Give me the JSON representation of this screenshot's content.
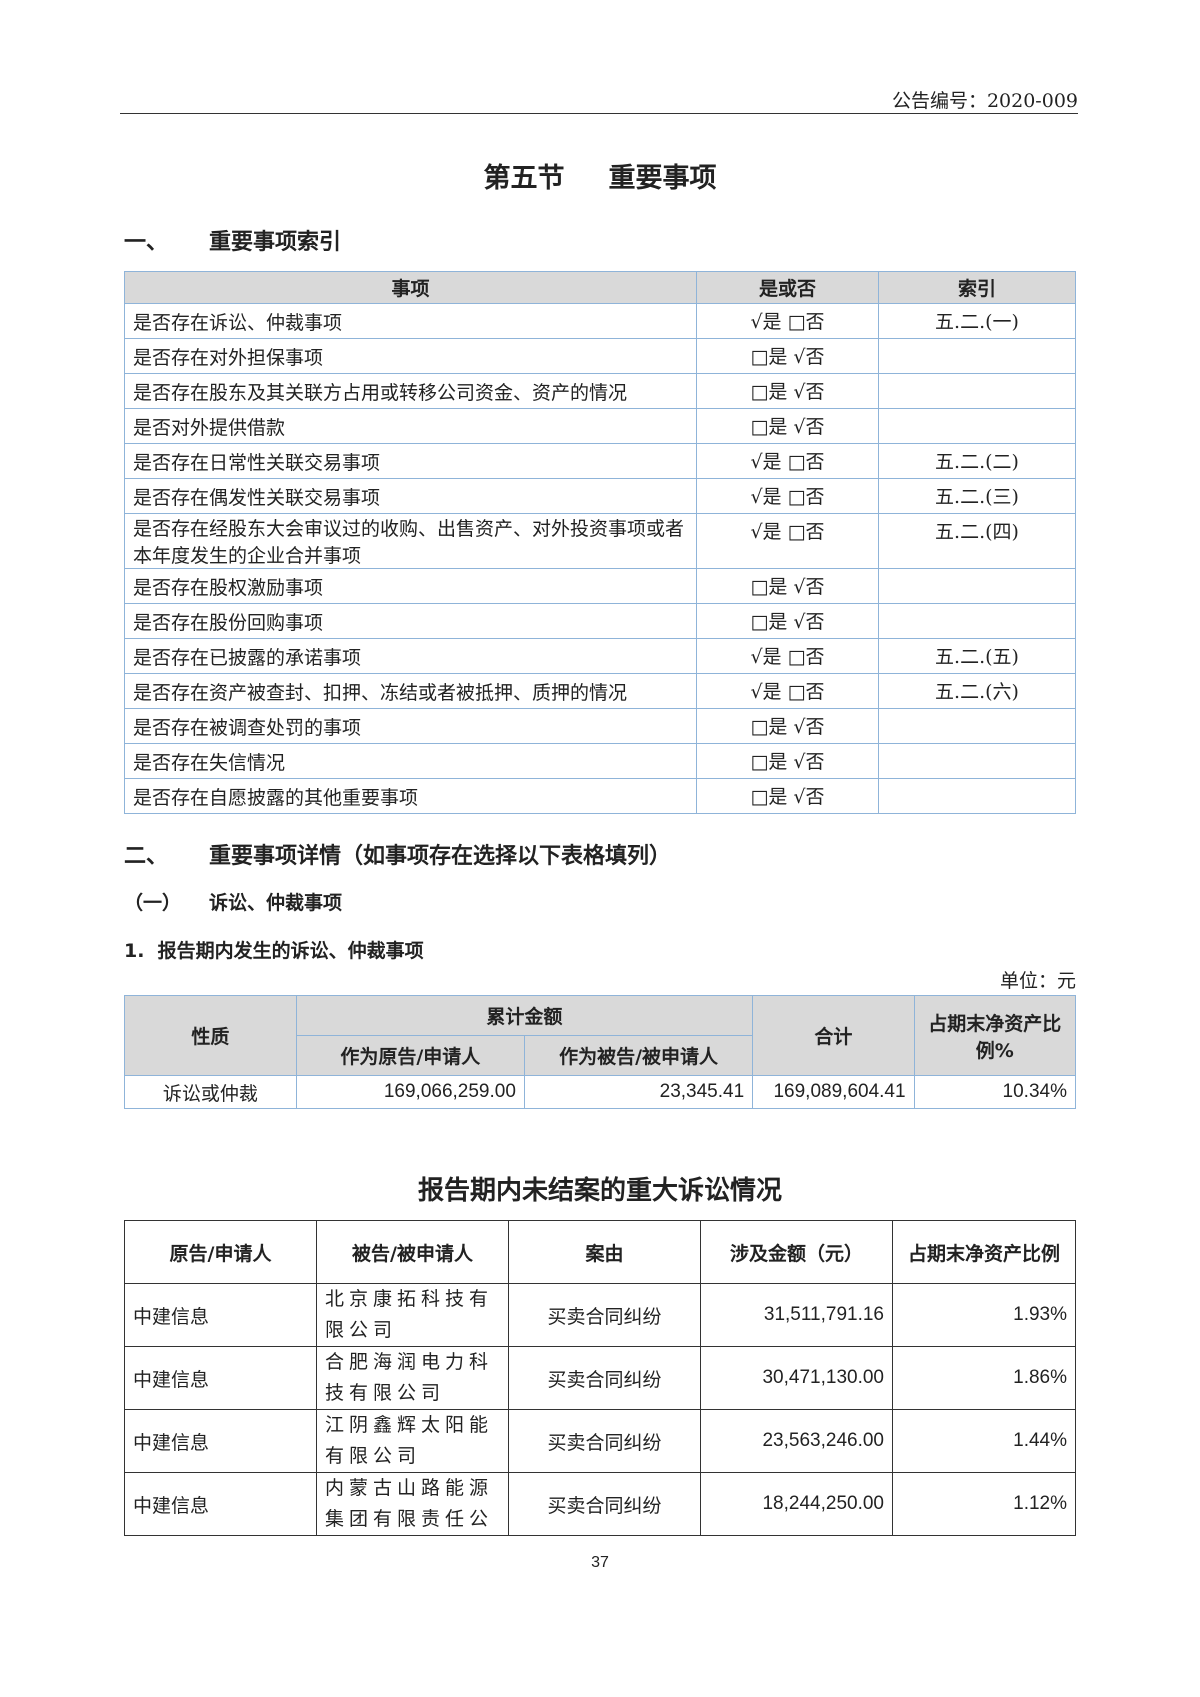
{
  "header": {
    "doc_number": "公告编号：2020-009"
  },
  "title": {
    "section": "第五节",
    "name": "重要事项"
  },
  "section1": {
    "num": "一、",
    "title": "重要事项索引"
  },
  "index_table": {
    "headers": [
      "事项",
      "是或否",
      "索引"
    ],
    "rows": [
      {
        "item": "是否存在诉讼、仲裁事项",
        "answer": "√是 □否",
        "ref": "五.二.(一)"
      },
      {
        "item": "是否存在对外担保事项",
        "answer": "□是 √否",
        "ref": ""
      },
      {
        "item": "是否存在股东及其关联方占用或转移公司资金、资产的情况",
        "answer": "□是 √否",
        "ref": ""
      },
      {
        "item": "是否对外提供借款",
        "answer": "□是 √否",
        "ref": ""
      },
      {
        "item": "是否存在日常性关联交易事项",
        "answer": "√是 □否",
        "ref": "五.二.(二)"
      },
      {
        "item": "是否存在偶发性关联交易事项",
        "answer": "√是 □否",
        "ref": "五.二.(三)"
      },
      {
        "item": "是否存在经股东大会审议过的收购、出售资产、对外投资事项或者本年度发生的企业合并事项",
        "answer": "√是 □否",
        "ref": "五.二.(四)"
      },
      {
        "item": "是否存在股权激励事项",
        "answer": "□是 √否",
        "ref": ""
      },
      {
        "item": "是否存在股份回购事项",
        "answer": "□是 √否",
        "ref": ""
      },
      {
        "item": "是否存在已披露的承诺事项",
        "answer": "√是 □否",
        "ref": "五.二.(五)"
      },
      {
        "item": "是否存在资产被查封、扣押、冻结或者被抵押、质押的情况",
        "answer": "√是 □否",
        "ref": "五.二.(六)"
      },
      {
        "item": "是否存在被调查处罚的事项",
        "answer": "□是 √否",
        "ref": ""
      },
      {
        "item": "是否存在失信情况",
        "answer": "□是 √否",
        "ref": ""
      },
      {
        "item": "是否存在自愿披露的其他重要事项",
        "answer": "□是 √否",
        "ref": ""
      }
    ]
  },
  "section2": {
    "num": "二、",
    "title": "重要事项详情（如事项存在选择以下表格填列）"
  },
  "sub1": {
    "num": "（一）",
    "title": "诉讼、仲裁事项"
  },
  "sub1_1": "1.  报告期内发生的诉讼、仲裁事项",
  "unit": "单位：元",
  "litigation_summary": {
    "h_nature": "性质",
    "h_cumulative": "累计金额",
    "h_plaintiff": "作为原告/申请人",
    "h_defendant": "作为被告/被申请人",
    "h_total": "合计",
    "h_ratio": "占期末净资产比例%",
    "row": {
      "nature": "诉讼或仲裁",
      "plaintiff": "169,066,259.00",
      "defendant": "23,345.41",
      "total": "169,089,604.41",
      "ratio": "10.34%"
    }
  },
  "pending_title": "报告期内未结案的重大诉讼情况",
  "pending_table": {
    "headers": [
      "原告/申请人",
      "被告/被申请人",
      "案由",
      "涉及金额（元）",
      "占期末净资产比例"
    ],
    "rows": [
      {
        "plaintiff": "中建信息",
        "defendant": "北京康拓科技有限公司",
        "cause": "买卖合同纠纷",
        "amount": "31,511,791.16",
        "ratio": "1.93%"
      },
      {
        "plaintiff": "中建信息",
        "defendant": "合肥海润电力科技有限公司",
        "cause": "买卖合同纠纷",
        "amount": "30,471,130.00",
        "ratio": "1.86%"
      },
      {
        "plaintiff": "中建信息",
        "defendant": "江阴鑫辉太阳能有限公司",
        "cause": "买卖合同纠纷",
        "amount": "23,563,246.00",
        "ratio": "1.44%"
      },
      {
        "plaintiff": "中建信息",
        "defendant": "内蒙古山路能源集团有限责任公",
        "cause": "买卖合同纠纷",
        "amount": "18,244,250.00",
        "ratio": "1.12%"
      }
    ]
  },
  "page_number": "37"
}
